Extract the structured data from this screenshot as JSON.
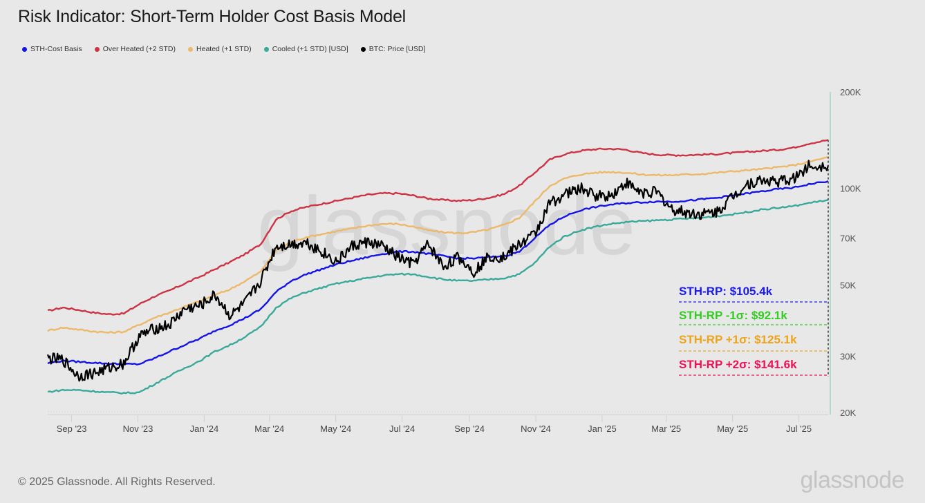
{
  "title": "Risk Indicator: Short-Term Holder Cost Basis Model",
  "legend": [
    {
      "label": "STH-Cost Basis",
      "color": "#1414e6"
    },
    {
      "label": "Over Heated (+2 STD)",
      "color": "#cc3344"
    },
    {
      "label": "Heated (+1 STD)",
      "color": "#ecb96a"
    },
    {
      "label": "Cooled (+1 STD) [USD]",
      "color": "#3aa99a"
    },
    {
      "label": "BTC: Price [USD]",
      "color": "#000000"
    }
  ],
  "footer": {
    "copyright": "© 2025 Glassnode. All Rights Reserved.",
    "brand": "glassnode"
  },
  "watermark": "glassnode",
  "annotations": [
    {
      "text": "STH-RP: $105.4k",
      "color": "#1a1aee"
    },
    {
      "text": "STH-RP -1σ: $92.1k",
      "color": "#33cc22"
    },
    {
      "text": "STH-RP +1σ: $125.1k",
      "color": "#eea418"
    },
    {
      "text": "STH-RP +2σ: $141.6k",
      "color": "#ee1155"
    }
  ],
  "chart_data": {
    "type": "line",
    "title": "Risk Indicator: Short-Term Holder Cost Basis Model",
    "xlabel": "",
    "ylabel": "",
    "yscale": "log",
    "ylim": [
      20000,
      200000
    ],
    "xlim": [
      "2023-08-10",
      "2025-07-28"
    ],
    "y_ticks": [
      {
        "value": 200000,
        "label": "200K"
      },
      {
        "value": 100000,
        "label": "100K"
      },
      {
        "value": 70000,
        "label": "70K"
      },
      {
        "value": 50000,
        "label": "50K"
      },
      {
        "value": 30000,
        "label": "30K"
      },
      {
        "value": 20000,
        "label": "20K"
      }
    ],
    "x_ticks": [
      {
        "date": "2023-09-01",
        "label": "Sep '23"
      },
      {
        "date": "2023-11-01",
        "label": "Nov '23"
      },
      {
        "date": "2024-01-01",
        "label": "Jan '24"
      },
      {
        "date": "2024-03-01",
        "label": "Mar '24"
      },
      {
        "date": "2024-05-01",
        "label": "May '24"
      },
      {
        "date": "2024-07-01",
        "label": "Jul '24"
      },
      {
        "date": "2024-09-01",
        "label": "Sep '24"
      },
      {
        "date": "2024-11-01",
        "label": "Nov '24"
      },
      {
        "date": "2025-01-01",
        "label": "Jan '25"
      },
      {
        "date": "2025-03-01",
        "label": "Mar '25"
      },
      {
        "date": "2025-05-01",
        "label": "May '25"
      },
      {
        "date": "2025-07-01",
        "label": "Jul '25"
      }
    ],
    "grid": false,
    "legend_position": "top-left",
    "x": [
      "2023-08-10",
      "2023-08-24",
      "2023-09-07",
      "2023-09-21",
      "2023-10-05",
      "2023-10-19",
      "2023-11-02",
      "2023-11-16",
      "2023-11-30",
      "2023-12-14",
      "2023-12-28",
      "2024-01-11",
      "2024-01-25",
      "2024-02-08",
      "2024-02-22",
      "2024-03-07",
      "2024-03-21",
      "2024-04-04",
      "2024-04-18",
      "2024-05-02",
      "2024-05-16",
      "2024-05-30",
      "2024-06-13",
      "2024-06-27",
      "2024-07-11",
      "2024-07-25",
      "2024-08-08",
      "2024-08-22",
      "2024-09-05",
      "2024-09-19",
      "2024-10-03",
      "2024-10-17",
      "2024-10-31",
      "2024-11-14",
      "2024-11-28",
      "2024-12-12",
      "2024-12-26",
      "2025-01-09",
      "2025-01-23",
      "2025-02-06",
      "2025-02-20",
      "2025-03-06",
      "2025-03-20",
      "2025-04-03",
      "2025-04-17",
      "2025-05-01",
      "2025-05-15",
      "2025-05-29",
      "2025-06-12",
      "2025-06-26",
      "2025-07-10",
      "2025-07-28"
    ],
    "series": [
      {
        "name": "Over Heated (+2 STD)",
        "color": "#cc3344",
        "values": [
          41500,
          42500,
          41800,
          41000,
          40500,
          40700,
          43500,
          46000,
          48000,
          50500,
          53000,
          56000,
          59000,
          62500,
          67000,
          80000,
          85000,
          87500,
          89500,
          91500,
          93500,
          95500,
          96500,
          96500,
          95000,
          93000,
          92000,
          91500,
          92000,
          93500,
          96000,
          102000,
          112000,
          123000,
          128000,
          131000,
          132500,
          133000,
          132000,
          129000,
          127500,
          127000,
          127000,
          127500,
          128000,
          129000,
          130000,
          131000,
          132000,
          134000,
          138000,
          141600
        ]
      },
      {
        "name": "Heated (+1 STD)",
        "color": "#ecb96a",
        "values": [
          36000,
          36800,
          36300,
          35800,
          35500,
          35700,
          37500,
          39500,
          41000,
          42800,
          44500,
          46500,
          48500,
          51500,
          55000,
          64000,
          68000,
          70500,
          72000,
          73500,
          75000,
          76500,
          77500,
          77500,
          76000,
          74000,
          73000,
          72500,
          73000,
          74500,
          77000,
          81000,
          91000,
          102000,
          107500,
          110500,
          112000,
          112500,
          112000,
          110500,
          110000,
          110000,
          110500,
          111000,
          112000,
          113000,
          114000,
          115000,
          116500,
          118000,
          121000,
          125100
        ]
      },
      {
        "name": "STH-Cost Basis",
        "color": "#1414e6",
        "values": [
          28500,
          29000,
          28800,
          28600,
          28400,
          28300,
          28300,
          29500,
          31000,
          32500,
          34000,
          36000,
          37500,
          39500,
          42000,
          47500,
          51500,
          54000,
          56000,
          58000,
          59500,
          61000,
          62500,
          63500,
          63500,
          62500,
          61500,
          60500,
          60500,
          61000,
          61500,
          63500,
          70000,
          77000,
          82000,
          85500,
          87500,
          89000,
          90000,
          90500,
          91000,
          91000,
          91500,
          92500,
          93500,
          95000,
          96500,
          98000,
          99500,
          100500,
          103000,
          105400
        ]
      },
      {
        "name": "Cooled (+1 STD) [USD]",
        "color": "#3aa99a",
        "values": [
          23200,
          23500,
          23500,
          23300,
          23100,
          23000,
          23100,
          24500,
          26000,
          27500,
          29000,
          31000,
          32500,
          34500,
          37000,
          42500,
          45500,
          47500,
          49000,
          50500,
          51500,
          52500,
          53500,
          54000,
          54000,
          53000,
          52000,
          51500,
          51500,
          52000,
          52500,
          54000,
          58500,
          66000,
          71000,
          74000,
          76000,
          77500,
          78500,
          79000,
          79500,
          80000,
          80500,
          81000,
          82000,
          83000,
          84500,
          86000,
          87000,
          88000,
          90000,
          92100
        ]
      },
      {
        "name": "BTC: Price [USD]",
        "color": "#000000",
        "values": [
          29500,
          29200,
          26000,
          26500,
          27500,
          28500,
          34500,
          36500,
          37500,
          42000,
          43000,
          46500,
          40000,
          44000,
          51500,
          66000,
          67000,
          68000,
          63500,
          59000,
          66000,
          68000,
          66000,
          61000,
          58000,
          67000,
          57000,
          61000,
          55000,
          61500,
          61000,
          67000,
          72000,
          90000,
          96000,
          100000,
          95000,
          95000,
          104000,
          97000,
          97500,
          86000,
          84000,
          83000,
          84500,
          94500,
          103500,
          106000,
          105000,
          107000,
          117500,
          118000
        ]
      }
    ]
  }
}
